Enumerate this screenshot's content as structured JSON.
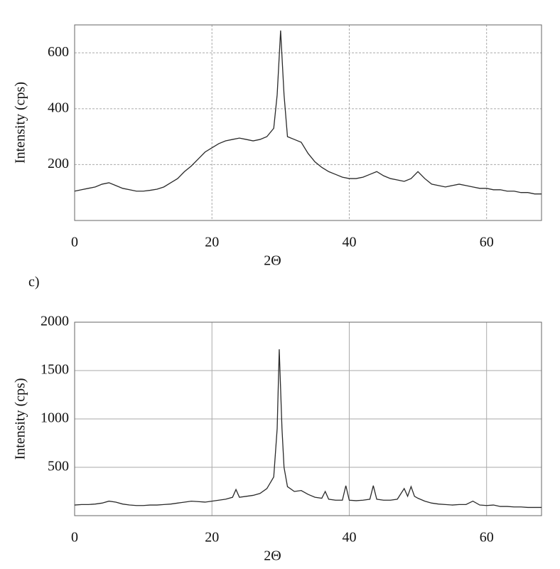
{
  "chart_data": [
    {
      "type": "line",
      "x_label": "2Θ",
      "y_label": "Intensity (cps)",
      "grid": true,
      "grid_style": "dashed",
      "xlim": [
        0,
        68
      ],
      "xticks": [
        0,
        20,
        40,
        60
      ],
      "ylim": [
        0,
        700
      ],
      "yticks": [
        200,
        400,
        600
      ],
      "series": [
        {
          "color": "#2a2a2a",
          "x": [
            0,
            1,
            2,
            3,
            4,
            5,
            6,
            7,
            8,
            9,
            10,
            11,
            12,
            13,
            14,
            15,
            16,
            17,
            18,
            19,
            20,
            21,
            22,
            23,
            24,
            25,
            26,
            27,
            28,
            29,
            29.5,
            30,
            30.5,
            31,
            32,
            33,
            34,
            35,
            36,
            37,
            38,
            39,
            40,
            41,
            42,
            43,
            44,
            45,
            46,
            47,
            48,
            49,
            50,
            51,
            52,
            53,
            54,
            55,
            56,
            57,
            58,
            59,
            60,
            61,
            62,
            63,
            64,
            65,
            66,
            67,
            68
          ],
          "values": [
            105,
            110,
            115,
            120,
            130,
            135,
            125,
            115,
            110,
            105,
            105,
            108,
            112,
            120,
            135,
            150,
            175,
            195,
            220,
            245,
            260,
            275,
            285,
            290,
            295,
            290,
            285,
            290,
            300,
            330,
            450,
            680,
            450,
            300,
            290,
            280,
            240,
            210,
            190,
            175,
            165,
            155,
            150,
            150,
            155,
            165,
            175,
            160,
            150,
            145,
            140,
            150,
            175,
            150,
            130,
            125,
            120,
            125,
            130,
            125,
            120,
            115,
            115,
            110,
            110,
            105,
            105,
            100,
            100,
            95,
            95
          ]
        }
      ]
    },
    {
      "type": "line",
      "label": "c)",
      "x_label": "2Θ",
      "y_label": "Intensity (cps)",
      "grid": true,
      "grid_style": "solid",
      "xlim": [
        0,
        68
      ],
      "xticks": [
        0,
        20,
        40,
        60
      ],
      "ylim": [
        0,
        2000
      ],
      "yticks": [
        500,
        1000,
        1500,
        2000
      ],
      "series": [
        {
          "color": "#2a2a2a",
          "x": [
            0,
            1,
            2,
            3,
            4,
            5,
            6,
            7,
            8,
            9,
            10,
            11,
            12,
            13,
            14,
            15,
            16,
            17,
            18,
            19,
            20,
            21,
            22,
            23,
            23.5,
            24,
            25,
            26,
            27,
            28,
            29,
            29.5,
            29.8,
            30.2,
            30.5,
            31,
            32,
            33,
            34,
            35,
            36,
            36.5,
            37,
            38,
            39,
            39.5,
            40,
            41,
            42,
            43,
            43.5,
            44,
            45,
            46,
            47,
            48,
            48.5,
            49,
            49.5,
            50,
            51,
            52,
            53,
            54,
            55,
            56,
            57,
            58,
            59,
            60,
            61,
            62,
            63,
            64,
            65,
            66,
            67,
            68
          ],
          "values": [
            110,
            115,
            115,
            120,
            130,
            150,
            140,
            120,
            110,
            105,
            105,
            110,
            110,
            115,
            120,
            130,
            140,
            150,
            145,
            140,
            150,
            160,
            170,
            190,
            270,
            190,
            200,
            210,
            230,
            280,
            400,
            900,
            1720,
            900,
            500,
            300,
            250,
            260,
            220,
            190,
            180,
            250,
            170,
            160,
            160,
            310,
            160,
            155,
            160,
            170,
            310,
            170,
            160,
            160,
            170,
            280,
            200,
            300,
            200,
            180,
            150,
            130,
            120,
            115,
            110,
            115,
            115,
            150,
            110,
            105,
            110,
            95,
            95,
            90,
            90,
            85,
            85,
            85
          ]
        }
      ]
    }
  ]
}
